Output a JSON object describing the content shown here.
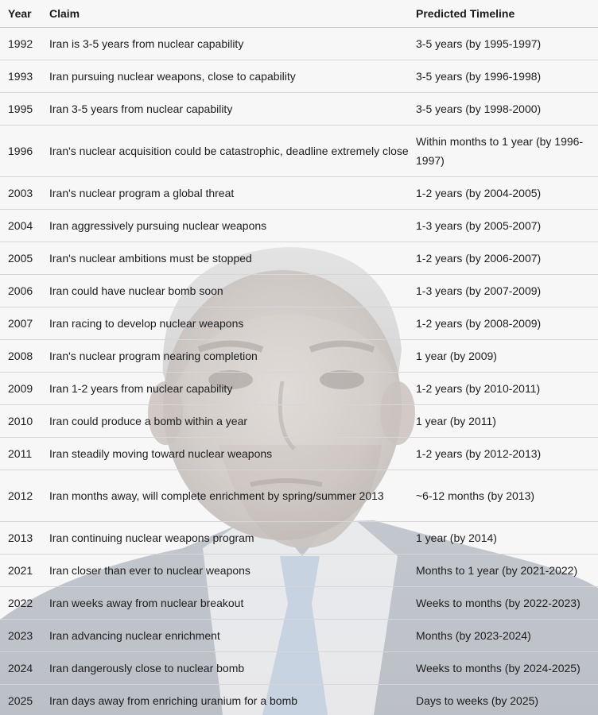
{
  "table": {
    "headers": {
      "year": "Year",
      "claim": "Claim",
      "timeline": "Predicted Timeline"
    },
    "rows": [
      {
        "year": "1992",
        "claim": "Iran is 3-5 years from nuclear capability",
        "timeline": "3-5 years (by 1995-1997)"
      },
      {
        "year": "1993",
        "claim": "Iran pursuing nuclear weapons, close to capability",
        "timeline": "3-5 years (by 1996-1998)"
      },
      {
        "year": "1995",
        "claim": "Iran 3-5 years from nuclear capability",
        "timeline": "3-5 years (by 1998-2000)"
      },
      {
        "year": "1996",
        "claim": "Iran's nuclear acquisition could be catastrophic, deadline extremely close",
        "timeline": "Within months to 1 year (by 1996-1997)"
      },
      {
        "year": "2003",
        "claim": "Iran's nuclear program a global threat",
        "timeline": "1-2 years (by 2004-2005)"
      },
      {
        "year": "2004",
        "claim": "Iran aggressively pursuing nuclear weapons",
        "timeline": "1-3 years (by 2005-2007)"
      },
      {
        "year": "2005",
        "claim": "Iran's nuclear ambitions must be stopped",
        "timeline": "1-2 years (by 2006-2007)"
      },
      {
        "year": "2006",
        "claim": "Iran could have nuclear bomb soon",
        "timeline": "1-3 years (by 2007-2009)"
      },
      {
        "year": "2007",
        "claim": "Iran racing to develop nuclear weapons",
        "timeline": "1-2 years (by 2008-2009)"
      },
      {
        "year": "2008",
        "claim": "Iran's nuclear program nearing completion",
        "timeline": "1 year (by 2009)"
      },
      {
        "year": "2009",
        "claim": "Iran 1-2 years from nuclear capability",
        "timeline": "1-2 years (by 2010-2011)"
      },
      {
        "year": "2010",
        "claim": "Iran could produce a bomb within a year",
        "timeline": "1 year (by 2011)"
      },
      {
        "year": "2011",
        "claim": "Iran steadily moving toward nuclear weapons",
        "timeline": "1-2 years (by 2012-2013)"
      },
      {
        "year": "2012",
        "claim": "Iran months away, will complete enrichment by spring/summer 2013",
        "timeline": "~6-12 months (by 2013)"
      },
      {
        "year": "2013",
        "claim": "Iran continuing nuclear weapons program",
        "timeline": "1 year (by 2014)"
      },
      {
        "year": "2021",
        "claim": "Iran closer than ever to nuclear weapons",
        "timeline": "Months to 1 year (by 2021-2022)"
      },
      {
        "year": "2022",
        "claim": "Iran weeks away from nuclear breakout",
        "timeline": "Weeks to months (by 2022-2023)"
      },
      {
        "year": "2023",
        "claim": "Iran advancing nuclear enrichment",
        "timeline": "Months (by 2023-2024)"
      },
      {
        "year": "2024",
        "claim": "Iran dangerously close to nuclear bomb",
        "timeline": "Weeks to months (by 2024-2025)"
      },
      {
        "year": "2025",
        "claim": "Iran days away from enriching uranium for a bomb",
        "timeline": "Days to weeks (by 2025)"
      }
    ]
  },
  "colors": {
    "background": "#f7f7f7",
    "text": "#1d1d1d",
    "row_divider": "#d6d6d6"
  }
}
